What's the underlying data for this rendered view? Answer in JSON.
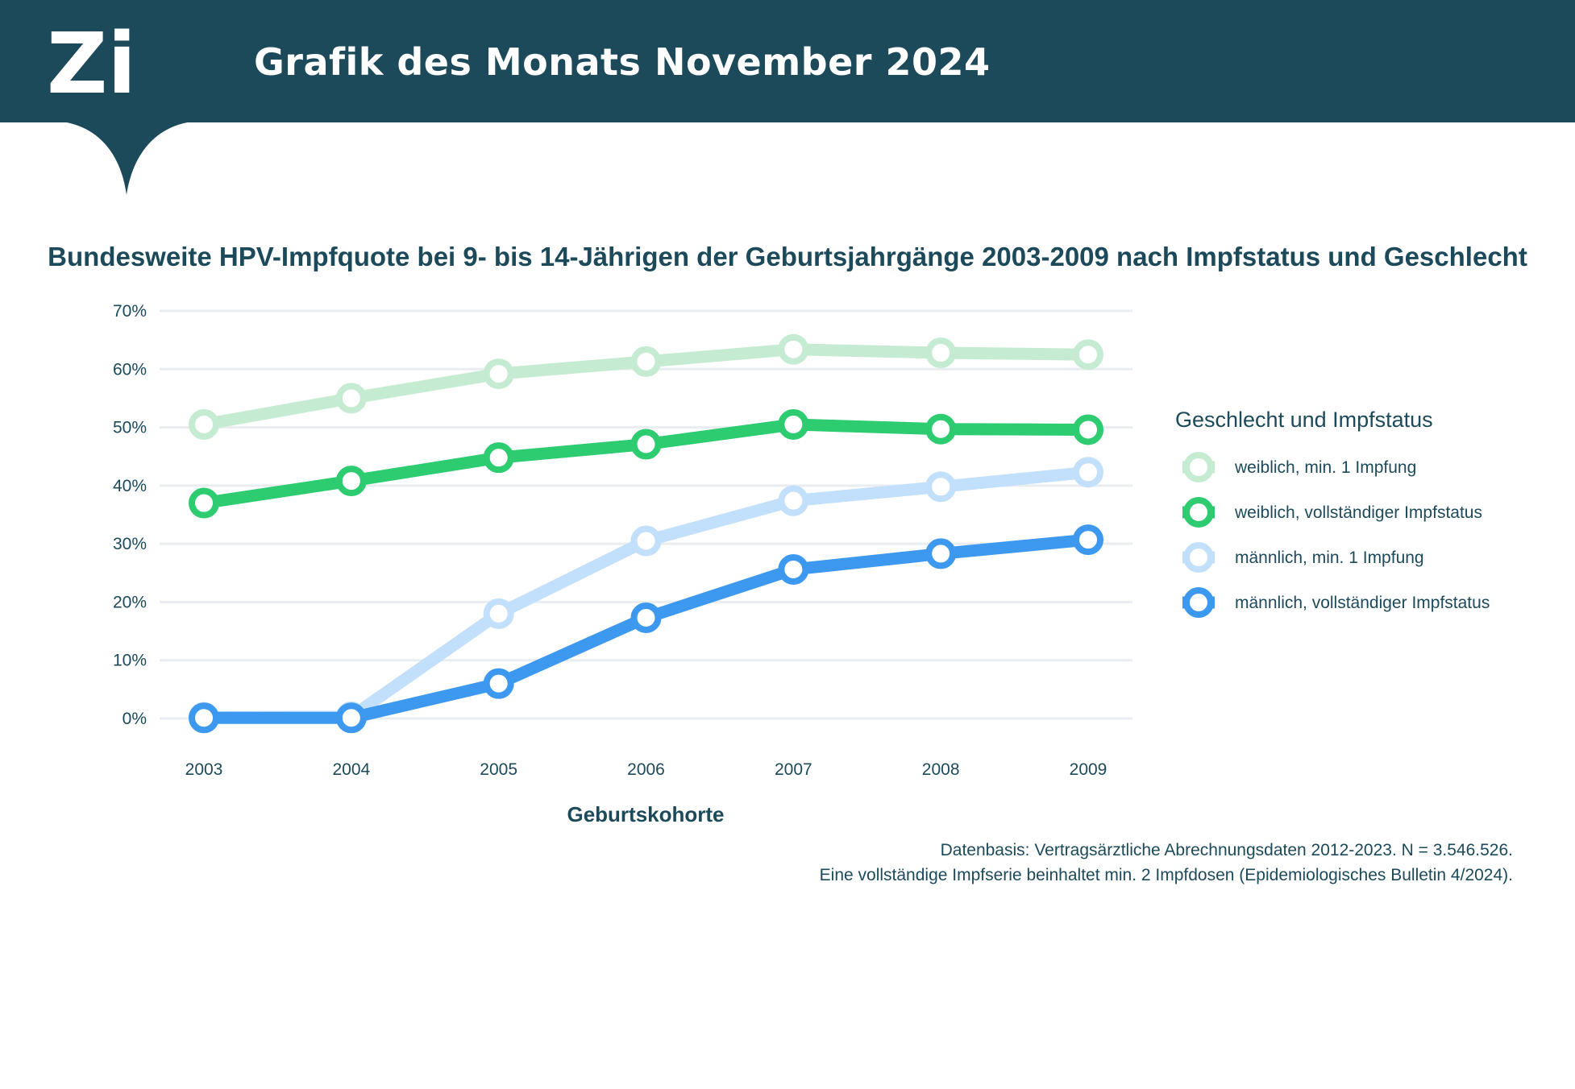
{
  "header": {
    "logo_text": "Zi",
    "title": "Grafik des Monats November 2024"
  },
  "colors": {
    "header_bg": "#1c4a5a",
    "grid": "#e9edf0",
    "text": "#1c4a5a"
  },
  "chart_data": {
    "type": "line",
    "title": "Bundesweite HPV-Impfquote bei 9- bis 14-Jährigen der Geburtsjahrgänge 2003-2009 nach Impfstatus und Geschlecht",
    "xlabel": "Geburtskohorte",
    "ylabel": "",
    "x": [
      "2003",
      "2004",
      "2005",
      "2006",
      "2007",
      "2008",
      "2009"
    ],
    "ylim": [
      0,
      70
    ],
    "yticks": [
      0,
      10,
      20,
      30,
      40,
      50,
      60,
      70
    ],
    "ytick_labels": [
      "0%",
      "10%",
      "20%",
      "30%",
      "40%",
      "50%",
      "60%",
      "70%"
    ],
    "grid": true,
    "legend_title": "Geschlecht und Impfstatus",
    "legend_position": "right",
    "series": [
      {
        "name": "weiblich, min. 1 Impfung",
        "color": "#c5ecd3",
        "values": [
          50.5,
          55.0,
          59.2,
          61.3,
          63.4,
          62.8,
          62.5
        ]
      },
      {
        "name": "weiblich, vollständiger Impfstatus",
        "color": "#2ecc71",
        "values": [
          37.0,
          40.8,
          44.8,
          47.1,
          50.5,
          49.7,
          49.6
        ]
      },
      {
        "name": "männlich, min. 1 Impfung",
        "color": "#c2e0fb",
        "values": [
          0.2,
          0.3,
          18.0,
          30.5,
          37.4,
          39.8,
          42.3
        ]
      },
      {
        "name": "männlich, vollständiger Impfstatus",
        "color": "#3d99f0",
        "values": [
          0.1,
          0.1,
          6.0,
          17.3,
          25.6,
          28.3,
          30.7
        ]
      }
    ]
  },
  "footnote": {
    "line1": "Datenbasis: Vertragsärztliche Abrechnungsdaten 2012-2023. N = 3.546.526.",
    "line2": "Eine vollständige Impfserie beinhaltet min. 2 Impfdosen (Epidemiologisches Bulletin 4/2024)."
  }
}
